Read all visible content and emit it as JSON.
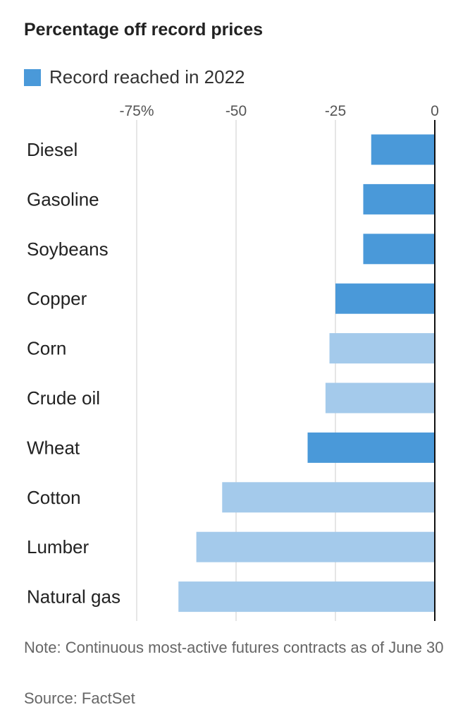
{
  "chart_data": {
    "type": "bar",
    "orientation": "horizontal",
    "title": "Percentage off record prices",
    "legend": [
      {
        "label": "Record reached in 2022",
        "color": "#4a99d9"
      }
    ],
    "colors": {
      "record_2022": "#4a99d9",
      "other": "#a4caeb",
      "zero_line": "#111111",
      "grid": "#dddddd"
    },
    "xlim": [
      -80,
      0
    ],
    "x_ticks": [
      {
        "value": -75,
        "label": "-75%"
      },
      {
        "value": -50,
        "label": "-50"
      },
      {
        "value": -25,
        "label": "-25"
      },
      {
        "value": 0,
        "label": "0"
      }
    ],
    "categories": [
      "Diesel",
      "Gasoline",
      "Soybeans",
      "Copper",
      "Corn",
      "Crude oil",
      "Wheat",
      "Cotton",
      "Lumber",
      "Natural gas"
    ],
    "values": [
      -16,
      -18,
      -18,
      -25,
      -26.5,
      -27.5,
      -32,
      -53.5,
      -60,
      -64.5
    ],
    "record_2022": [
      true,
      true,
      true,
      true,
      false,
      false,
      true,
      false,
      false,
      false
    ],
    "grid": true
  },
  "note": "Note: Continuous most-active futures contracts as of June 30",
  "source": "Source: FactSet"
}
